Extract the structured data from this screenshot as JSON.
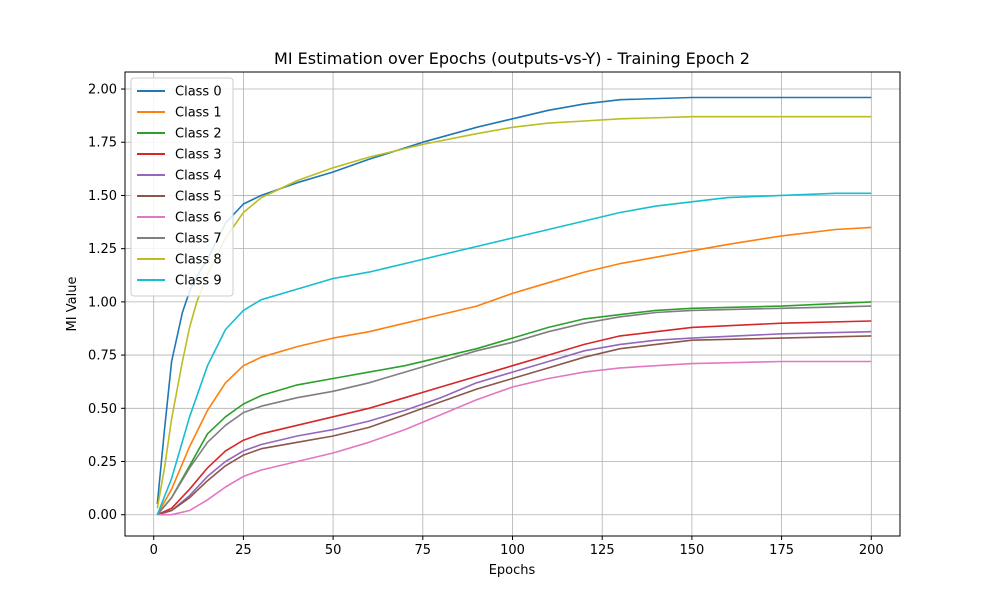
{
  "chart_data": {
    "type": "line",
    "title": "MI Estimation over Epochs (outputs-vs-Y) - Training Epoch 2",
    "xlabel": "Epochs",
    "ylabel": "MI Value",
    "xlim": [
      -8,
      208
    ],
    "ylim": [
      -0.1,
      2.08
    ],
    "xticks": [
      0,
      25,
      50,
      75,
      100,
      125,
      150,
      175,
      200
    ],
    "yticks": [
      0.0,
      0.25,
      0.5,
      0.75,
      1.0,
      1.25,
      1.5,
      1.75,
      2.0
    ],
    "ytick_labels": [
      "0.00",
      "0.25",
      "0.50",
      "0.75",
      "1.00",
      "1.25",
      "1.50",
      "1.75",
      "2.00"
    ],
    "grid": true,
    "legend_position": "top-left",
    "series": [
      {
        "name": "Class 0",
        "color": "#1f77b4",
        "x": [
          1,
          3,
          5,
          8,
          10,
          12,
          15,
          20,
          25,
          30,
          40,
          50,
          60,
          75,
          90,
          100,
          110,
          120,
          130,
          150,
          175,
          200
        ],
        "y": [
          0.05,
          0.4,
          0.72,
          0.95,
          1.05,
          1.12,
          1.2,
          1.37,
          1.46,
          1.5,
          1.56,
          1.61,
          1.67,
          1.75,
          1.82,
          1.86,
          1.9,
          1.93,
          1.95,
          1.96,
          1.96,
          1.96
        ]
      },
      {
        "name": "Class 1",
        "color": "#ff7f0e",
        "x": [
          1,
          5,
          10,
          15,
          20,
          25,
          30,
          40,
          50,
          60,
          70,
          80,
          90,
          100,
          110,
          120,
          130,
          140,
          150,
          160,
          175,
          190,
          200
        ],
        "y": [
          0.0,
          0.12,
          0.32,
          0.49,
          0.62,
          0.7,
          0.74,
          0.79,
          0.83,
          0.86,
          0.9,
          0.94,
          0.98,
          1.04,
          1.09,
          1.14,
          1.18,
          1.21,
          1.24,
          1.27,
          1.31,
          1.34,
          1.35
        ]
      },
      {
        "name": "Class 2",
        "color": "#2ca02c",
        "x": [
          1,
          5,
          10,
          15,
          20,
          25,
          30,
          40,
          50,
          60,
          70,
          80,
          90,
          100,
          110,
          120,
          130,
          140,
          150,
          175,
          200
        ],
        "y": [
          0.0,
          0.08,
          0.23,
          0.38,
          0.46,
          0.52,
          0.56,
          0.61,
          0.64,
          0.67,
          0.7,
          0.74,
          0.78,
          0.83,
          0.88,
          0.92,
          0.94,
          0.96,
          0.97,
          0.98,
          1.0
        ]
      },
      {
        "name": "Class 3",
        "color": "#d62728",
        "x": [
          1,
          5,
          10,
          15,
          20,
          25,
          30,
          40,
          50,
          60,
          70,
          80,
          90,
          100,
          110,
          120,
          130,
          140,
          150,
          175,
          200
        ],
        "y": [
          0.0,
          0.03,
          0.12,
          0.22,
          0.3,
          0.35,
          0.38,
          0.42,
          0.46,
          0.5,
          0.55,
          0.6,
          0.65,
          0.7,
          0.75,
          0.8,
          0.84,
          0.86,
          0.88,
          0.9,
          0.91
        ]
      },
      {
        "name": "Class 4",
        "color": "#9467bd",
        "x": [
          1,
          5,
          10,
          15,
          20,
          25,
          30,
          40,
          50,
          60,
          70,
          80,
          90,
          100,
          110,
          120,
          130,
          140,
          150,
          175,
          200
        ],
        "y": [
          0.0,
          0.02,
          0.09,
          0.18,
          0.25,
          0.3,
          0.33,
          0.37,
          0.4,
          0.44,
          0.49,
          0.55,
          0.62,
          0.67,
          0.72,
          0.77,
          0.8,
          0.82,
          0.83,
          0.85,
          0.86
        ]
      },
      {
        "name": "Class 5",
        "color": "#8c564b",
        "x": [
          1,
          5,
          10,
          15,
          20,
          25,
          30,
          40,
          50,
          60,
          70,
          80,
          90,
          100,
          110,
          120,
          130,
          140,
          150,
          175,
          200
        ],
        "y": [
          0.0,
          0.02,
          0.08,
          0.16,
          0.23,
          0.28,
          0.31,
          0.34,
          0.37,
          0.41,
          0.47,
          0.53,
          0.59,
          0.64,
          0.69,
          0.74,
          0.78,
          0.8,
          0.82,
          0.83,
          0.84
        ]
      },
      {
        "name": "Class 6",
        "color": "#e377c2",
        "x": [
          1,
          5,
          10,
          15,
          20,
          25,
          30,
          40,
          50,
          60,
          70,
          80,
          90,
          100,
          110,
          120,
          130,
          140,
          150,
          175,
          200
        ],
        "y": [
          0.0,
          0.0,
          0.02,
          0.07,
          0.13,
          0.18,
          0.21,
          0.25,
          0.29,
          0.34,
          0.4,
          0.47,
          0.54,
          0.6,
          0.64,
          0.67,
          0.69,
          0.7,
          0.71,
          0.72,
          0.72
        ]
      },
      {
        "name": "Class 7",
        "color": "#7f7f7f",
        "x": [
          1,
          5,
          10,
          15,
          20,
          25,
          30,
          40,
          50,
          60,
          70,
          80,
          90,
          100,
          110,
          120,
          130,
          140,
          150,
          175,
          200
        ],
        "y": [
          0.0,
          0.08,
          0.22,
          0.34,
          0.42,
          0.48,
          0.51,
          0.55,
          0.58,
          0.62,
          0.67,
          0.72,
          0.77,
          0.81,
          0.86,
          0.9,
          0.93,
          0.95,
          0.96,
          0.97,
          0.98
        ]
      },
      {
        "name": "Class 8",
        "color": "#bcbd22",
        "x": [
          1,
          3,
          5,
          8,
          10,
          12,
          15,
          20,
          25,
          30,
          40,
          50,
          60,
          75,
          90,
          100,
          110,
          120,
          130,
          150,
          175,
          200
        ],
        "y": [
          0.03,
          0.22,
          0.45,
          0.72,
          0.88,
          1.0,
          1.13,
          1.3,
          1.42,
          1.49,
          1.57,
          1.63,
          1.68,
          1.74,
          1.79,
          1.82,
          1.84,
          1.85,
          1.86,
          1.87,
          1.87,
          1.87
        ]
      },
      {
        "name": "Class 9",
        "color": "#17becf",
        "x": [
          1,
          5,
          10,
          15,
          20,
          25,
          30,
          40,
          50,
          60,
          70,
          80,
          90,
          100,
          110,
          120,
          130,
          140,
          150,
          160,
          175,
          190,
          200
        ],
        "y": [
          0.0,
          0.17,
          0.46,
          0.7,
          0.87,
          0.96,
          1.01,
          1.06,
          1.11,
          1.14,
          1.18,
          1.22,
          1.26,
          1.3,
          1.34,
          1.38,
          1.42,
          1.45,
          1.47,
          1.49,
          1.5,
          1.51,
          1.51
        ]
      }
    ]
  }
}
